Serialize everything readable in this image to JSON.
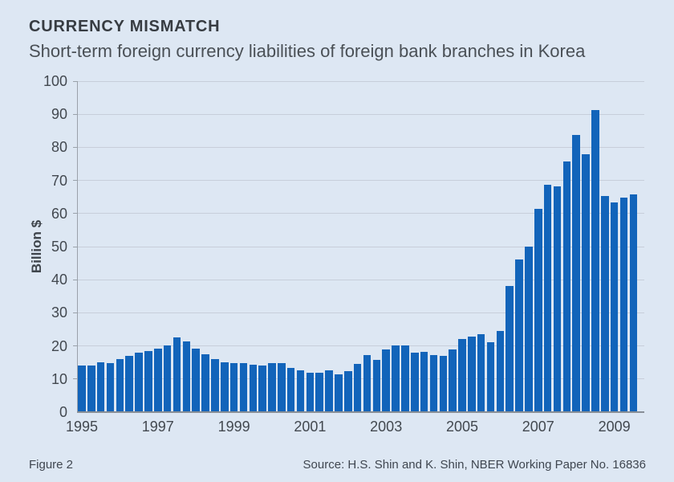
{
  "header": {
    "title": "CURRENCY MISMATCH",
    "subtitle": "Short-term foreign currency liabilities of foreign bank branches in Korea"
  },
  "footer": {
    "figure_label": "Figure 2",
    "source": "Source: H.S. Shin and K. Shin, NBER Working Paper No. 16836"
  },
  "colors": {
    "background": "#dde7f3",
    "bar": "#1264ba",
    "gridline": "#c7ceda",
    "axis": "#878e96",
    "text": "#42484f"
  },
  "chart_data": {
    "type": "bar",
    "title": "CURRENCY MISMATCH",
    "subtitle": "Short-term foreign currency liabilities of foreign bank branches in Korea",
    "ylabel": "Billion $",
    "xlabel": "",
    "ylim": [
      0,
      100
    ],
    "yticks": [
      0,
      10,
      20,
      30,
      40,
      50,
      60,
      70,
      80,
      90,
      100
    ],
    "grid": "horizontal",
    "legend": "none",
    "x_year_labels": [
      "1995",
      "1997",
      "1999",
      "2001",
      "2003",
      "2005",
      "2007",
      "2009"
    ],
    "categories": [
      "1995 Q1",
      "1995 Q2",
      "1995 Q3",
      "1995 Q4",
      "1996 Q1",
      "1996 Q2",
      "1996 Q3",
      "1996 Q4",
      "1997 Q1",
      "1997 Q2",
      "1997 Q3",
      "1997 Q4",
      "1998 Q1",
      "1998 Q2",
      "1998 Q3",
      "1998 Q4",
      "1999 Q1",
      "1999 Q2",
      "1999 Q3",
      "1999 Q4",
      "2000 Q1",
      "2000 Q2",
      "2000 Q3",
      "2000 Q4",
      "2001 Q1",
      "2001 Q2",
      "2001 Q3",
      "2001 Q4",
      "2002 Q1",
      "2002 Q2",
      "2002 Q3",
      "2002 Q4",
      "2003 Q1",
      "2003 Q2",
      "2003 Q3",
      "2003 Q4",
      "2004 Q1",
      "2004 Q2",
      "2004 Q3",
      "2004 Q4",
      "2005 Q1",
      "2005 Q2",
      "2005 Q3",
      "2005 Q4",
      "2006 Q1",
      "2006 Q2",
      "2006 Q3",
      "2006 Q4",
      "2007 Q1",
      "2007 Q2",
      "2007 Q3",
      "2007 Q4",
      "2008 Q1",
      "2008 Q2",
      "2008 Q3",
      "2008 Q4",
      "2009 Q1",
      "2009 Q2",
      "2009 Q3"
    ],
    "values": [
      14.0,
      14.0,
      15.1,
      14.7,
      16.0,
      17.1,
      18.0,
      18.4,
      19.2,
      20.1,
      22.5,
      21.4,
      19.1,
      17.5,
      16.0,
      15.1,
      14.9,
      14.9,
      14.3,
      14.0,
      14.7,
      14.9,
      13.3,
      12.7,
      11.9,
      11.9,
      12.7,
      11.3,
      12.5,
      14.5,
      17.2,
      15.8,
      19.0,
      20.2,
      20.2,
      17.9,
      18.3,
      17.3,
      17.0,
      19.0,
      22.1,
      22.9,
      23.6,
      21.2,
      24.6,
      38.1,
      46.2,
      50.1,
      61.4,
      68.7,
      68.1,
      75.7,
      83.8,
      77.8,
      91.3,
      65.4,
      63.3,
      64.9,
      65.8
    ]
  }
}
